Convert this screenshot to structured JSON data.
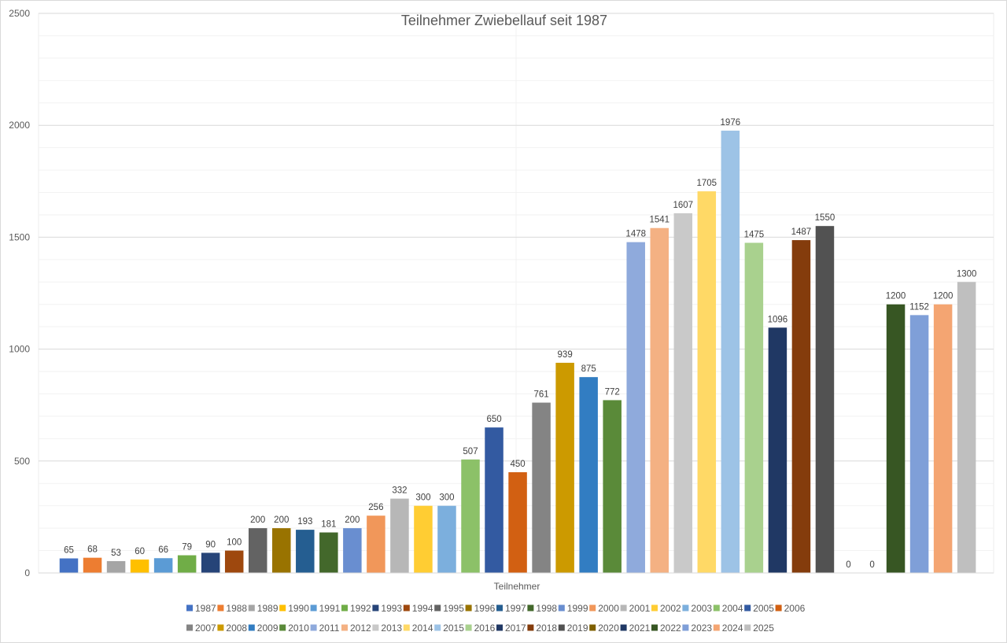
{
  "chart_data": {
    "type": "bar",
    "title": "Teilnehmer Zwiebellauf seit 1987",
    "xlabel": "Teilnehmer",
    "ylabel": "",
    "ylim": [
      0,
      2500
    ],
    "yticks": [
      0,
      500,
      1000,
      1500,
      2000,
      2500
    ],
    "grid": true,
    "legend_position": "bottom",
    "categories": [
      "Teilnehmer"
    ],
    "series": [
      {
        "name": "1987",
        "values": [
          65
        ],
        "color": "#4472c4"
      },
      {
        "name": "1988",
        "values": [
          68
        ],
        "color": "#ed7d31"
      },
      {
        "name": "1989",
        "values": [
          53
        ],
        "color": "#a5a5a5"
      },
      {
        "name": "1990",
        "values": [
          60
        ],
        "color": "#ffc000"
      },
      {
        "name": "1991",
        "values": [
          66
        ],
        "color": "#5b9bd5"
      },
      {
        "name": "1992",
        "values": [
          79
        ],
        "color": "#70ad47"
      },
      {
        "name": "1993",
        "values": [
          90
        ],
        "color": "#264478"
      },
      {
        "name": "1994",
        "values": [
          100
        ],
        "color": "#9e480e"
      },
      {
        "name": "1995",
        "values": [
          200
        ],
        "color": "#636363"
      },
      {
        "name": "1996",
        "values": [
          200
        ],
        "color": "#997300"
      },
      {
        "name": "1997",
        "values": [
          193
        ],
        "color": "#255e91"
      },
      {
        "name": "1998",
        "values": [
          181
        ],
        "color": "#43682b"
      },
      {
        "name": "1999",
        "values": [
          200
        ],
        "color": "#698ed0"
      },
      {
        "name": "2000",
        "values": [
          256
        ],
        "color": "#f1975a"
      },
      {
        "name": "2001",
        "values": [
          332
        ],
        "color": "#b7b7b7"
      },
      {
        "name": "2002",
        "values": [
          300
        ],
        "color": "#ffcd33"
      },
      {
        "name": "2003",
        "values": [
          300
        ],
        "color": "#7cafdd"
      },
      {
        "name": "2004",
        "values": [
          507
        ],
        "color": "#8cc168"
      },
      {
        "name": "2005",
        "values": [
          650
        ],
        "color": "#335aa1"
      },
      {
        "name": "2006",
        "values": [
          450
        ],
        "color": "#d26012"
      },
      {
        "name": "2007",
        "values": [
          761
        ],
        "color": "#848484"
      },
      {
        "name": "2008",
        "values": [
          939
        ],
        "color": "#cc9a00"
      },
      {
        "name": "2009",
        "values": [
          875
        ],
        "color": "#327dc2"
      },
      {
        "name": "2010",
        "values": [
          772
        ],
        "color": "#5a8a39"
      },
      {
        "name": "2011",
        "values": [
          1478
        ],
        "color": "#8faadc"
      },
      {
        "name": "2012",
        "values": [
          1541
        ],
        "color": "#f4b183"
      },
      {
        "name": "2013",
        "values": [
          1607
        ],
        "color": "#c9c9c9"
      },
      {
        "name": "2014",
        "values": [
          1705
        ],
        "color": "#ffd966"
      },
      {
        "name": "2015",
        "values": [
          1976
        ],
        "color": "#9dc3e6"
      },
      {
        "name": "2016",
        "values": [
          1475
        ],
        "color": "#a9d18e"
      },
      {
        "name": "2017",
        "values": [
          1096
        ],
        "color": "#203864"
      },
      {
        "name": "2018",
        "values": [
          1487
        ],
        "color": "#843c0c"
      },
      {
        "name": "2019",
        "values": [
          1550
        ],
        "color": "#525252"
      },
      {
        "name": "2020",
        "values": [
          0
        ],
        "color": "#7f6000"
      },
      {
        "name": "2021",
        "values": [
          0
        ],
        "color": "#1f3864"
      },
      {
        "name": "2022",
        "values": [
          1200
        ],
        "color": "#375623"
      },
      {
        "name": "2023",
        "values": [
          1152
        ],
        "color": "#7f9fd8"
      },
      {
        "name": "2024",
        "values": [
          1200
        ],
        "color": "#f4a572"
      },
      {
        "name": "2025",
        "values": [
          1300
        ],
        "color": "#bfbfbf"
      }
    ]
  }
}
